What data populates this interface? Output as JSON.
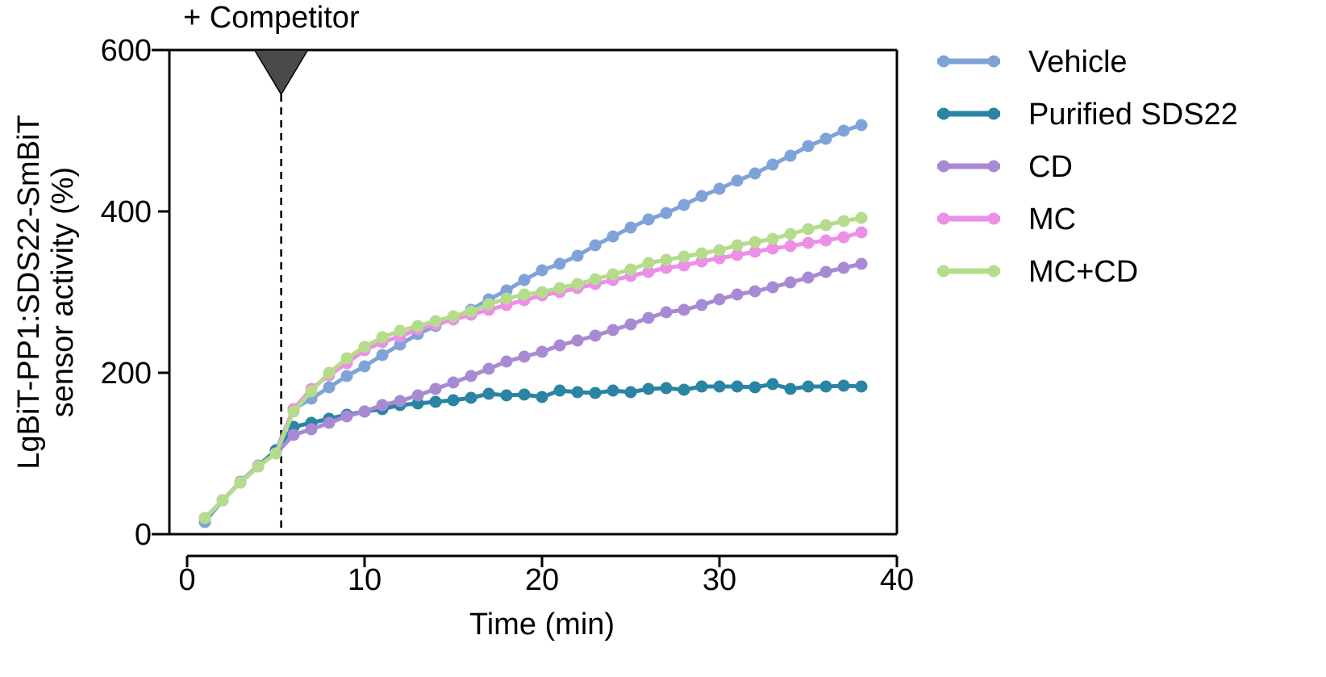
{
  "chart_data": {
    "type": "line",
    "title": "",
    "xlabel": "Time (min)",
    "ylabel_line1": "LgBiT-PP1:SDS22-SmBiT",
    "ylabel_line2": "sensor activity (%)",
    "xlim": [
      0,
      40
    ],
    "ylim": [
      0,
      600
    ],
    "xticks": [
      0,
      10,
      20,
      30,
      40
    ],
    "yticks": [
      0,
      200,
      400,
      600
    ],
    "xtick_labels": [
      "0",
      "10",
      "20",
      "30",
      "40"
    ],
    "ytick_labels": [
      "0",
      "200",
      "400",
      "600"
    ],
    "grid": false,
    "legend_position": "right",
    "annotation": {
      "text": "+ Competitor",
      "x": 5.3
    },
    "x": [
      1,
      2,
      3,
      4,
      5,
      6,
      7,
      8,
      9,
      10,
      11,
      12,
      13,
      14,
      15,
      16,
      17,
      18,
      19,
      20,
      21,
      22,
      23,
      24,
      25,
      26,
      27,
      28,
      29,
      30,
      31,
      32,
      33,
      34,
      35,
      36,
      37,
      38
    ],
    "series": [
      {
        "name": "Vehicle",
        "color": "#7fa3d9",
        "values": [
          15,
          42,
          65,
          85,
          103,
          155,
          168,
          182,
          196,
          208,
          222,
          235,
          248,
          258,
          268,
          278,
          291,
          302,
          315,
          327,
          335,
          345,
          358,
          369,
          380,
          390,
          398,
          408,
          419,
          428,
          438,
          447,
          458,
          469,
          481,
          490,
          500,
          507
        ]
      },
      {
        "name": "Purified SDS22",
        "color": "#2a84a4",
        "values": [
          20,
          42,
          64,
          84,
          104,
          133,
          138,
          143,
          148,
          152,
          155,
          160,
          162,
          164,
          166,
          169,
          174,
          172,
          173,
          170,
          178,
          176,
          175,
          178,
          176,
          180,
          181,
          179,
          183,
          183,
          183,
          182,
          186,
          180,
          183,
          183,
          184,
          183
        ]
      },
      {
        "name": "CD",
        "color": "#a88ad4",
        "values": [
          20,
          42,
          64,
          84,
          100,
          123,
          130,
          138,
          146,
          152,
          160,
          165,
          172,
          180,
          188,
          196,
          205,
          214,
          220,
          226,
          234,
          240,
          246,
          253,
          260,
          268,
          275,
          278,
          284,
          291,
          297,
          301,
          306,
          312,
          318,
          325,
          330,
          335
        ]
      },
      {
        "name": "MC",
        "color": "#ec8fe6",
        "values": [
          20,
          42,
          64,
          84,
          100,
          155,
          180,
          197,
          212,
          228,
          238,
          245,
          254,
          260,
          266,
          272,
          278,
          284,
          290,
          296,
          300,
          305,
          310,
          315,
          320,
          325,
          330,
          333,
          338,
          342,
          346,
          350,
          354,
          357,
          361,
          364,
          368,
          374
        ]
      },
      {
        "name": "MC+CD",
        "color": "#b5dc8c",
        "values": [
          20,
          42,
          64,
          84,
          100,
          152,
          177,
          200,
          218,
          232,
          244,
          252,
          258,
          264,
          270,
          276,
          285,
          292,
          297,
          300,
          305,
          310,
          316,
          322,
          328,
          336,
          340,
          344,
          348,
          352,
          358,
          362,
          366,
          372,
          378,
          383,
          388,
          392
        ]
      }
    ]
  }
}
